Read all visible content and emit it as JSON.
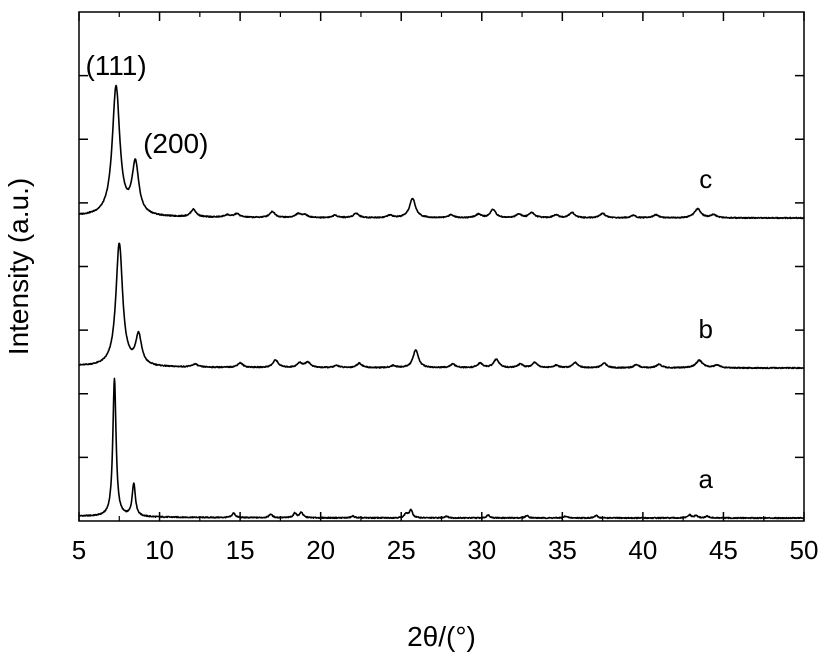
{
  "chart_data": {
    "type": "line",
    "title": "",
    "xlabel": "2θ/(°)",
    "ylabel": "Intensity (a.u.)",
    "xlim": [
      5,
      50
    ],
    "ylim": [
      0,
      100
    ],
    "x_ticks": [
      "5",
      "10",
      "15",
      "20",
      "25",
      "30",
      "35",
      "40",
      "45",
      "50"
    ],
    "y_ticks_labeled": false,
    "grid": false,
    "peak_annotations": [
      {
        "label": "(111)",
        "x": 7.3
      },
      {
        "label": "(200)",
        "x": 8.4
      }
    ],
    "series": [
      {
        "name": "a",
        "offset": 0,
        "peaks": [
          {
            "x": 7.2,
            "height": 46.0,
            "width": 0.12
          },
          {
            "x": 8.4,
            "height": 11.0,
            "width": 0.12
          },
          {
            "x": 14.6,
            "height": 1.5,
            "width": 0.12
          },
          {
            "x": 16.9,
            "height": 1.2,
            "width": 0.12
          },
          {
            "x": 18.4,
            "height": 1.5,
            "width": 0.12
          },
          {
            "x": 18.8,
            "height": 1.8,
            "width": 0.12
          },
          {
            "x": 22.0,
            "height": 0.6,
            "width": 0.12
          },
          {
            "x": 25.3,
            "height": 1.4,
            "width": 0.12
          },
          {
            "x": 25.6,
            "height": 2.6,
            "width": 0.12
          },
          {
            "x": 27.8,
            "height": 0.6,
            "width": 0.12
          },
          {
            "x": 30.4,
            "height": 1.0,
            "width": 0.12
          },
          {
            "x": 32.8,
            "height": 0.8,
            "width": 0.12
          },
          {
            "x": 35.2,
            "height": 0.6,
            "width": 0.12
          },
          {
            "x": 37.1,
            "height": 0.8,
            "width": 0.12
          },
          {
            "x": 42.9,
            "height": 1.0,
            "width": 0.12
          },
          {
            "x": 43.3,
            "height": 0.8,
            "width": 0.12
          },
          {
            "x": 44.0,
            "height": 0.6,
            "width": 0.12
          }
        ]
      },
      {
        "name": "b",
        "offset": 50,
        "peaks": [
          {
            "x": 7.5,
            "height": 41.0,
            "width": 0.25
          },
          {
            "x": 8.7,
            "height": 10.0,
            "width": 0.22
          },
          {
            "x": 12.2,
            "height": 1.0,
            "width": 0.2
          },
          {
            "x": 15.0,
            "height": 1.5,
            "width": 0.2
          },
          {
            "x": 17.2,
            "height": 2.5,
            "width": 0.2
          },
          {
            "x": 18.7,
            "height": 1.5,
            "width": 0.2
          },
          {
            "x": 19.2,
            "height": 1.8,
            "width": 0.2
          },
          {
            "x": 21.0,
            "height": 0.7,
            "width": 0.2
          },
          {
            "x": 22.4,
            "height": 1.5,
            "width": 0.2
          },
          {
            "x": 24.5,
            "height": 0.7,
            "width": 0.2
          },
          {
            "x": 25.9,
            "height": 6.0,
            "width": 0.2
          },
          {
            "x": 28.2,
            "height": 1.2,
            "width": 0.2
          },
          {
            "x": 29.9,
            "height": 1.5,
            "width": 0.2
          },
          {
            "x": 30.9,
            "height": 2.8,
            "width": 0.2
          },
          {
            "x": 32.4,
            "height": 1.2,
            "width": 0.2
          },
          {
            "x": 33.3,
            "height": 1.8,
            "width": 0.2
          },
          {
            "x": 34.6,
            "height": 0.8,
            "width": 0.2
          },
          {
            "x": 35.8,
            "height": 1.8,
            "width": 0.2
          },
          {
            "x": 37.6,
            "height": 1.5,
            "width": 0.2
          },
          {
            "x": 39.6,
            "height": 1.0,
            "width": 0.2
          },
          {
            "x": 41.0,
            "height": 1.2,
            "width": 0.2
          },
          {
            "x": 43.5,
            "height": 2.5,
            "width": 0.25
          },
          {
            "x": 44.6,
            "height": 1.0,
            "width": 0.2
          }
        ]
      },
      {
        "name": "c",
        "offset": 100,
        "peaks": [
          {
            "x": 7.3,
            "height": 43.0,
            "width": 0.28
          },
          {
            "x": 8.5,
            "height": 17.0,
            "width": 0.25
          },
          {
            "x": 12.1,
            "height": 2.5,
            "width": 0.2
          },
          {
            "x": 14.2,
            "height": 0.8,
            "width": 0.2
          },
          {
            "x": 14.8,
            "height": 1.2,
            "width": 0.2
          },
          {
            "x": 17.0,
            "height": 2.0,
            "width": 0.2
          },
          {
            "x": 18.6,
            "height": 1.2,
            "width": 0.2
          },
          {
            "x": 19.0,
            "height": 1.0,
            "width": 0.2
          },
          {
            "x": 20.9,
            "height": 0.8,
            "width": 0.2
          },
          {
            "x": 22.2,
            "height": 1.5,
            "width": 0.2
          },
          {
            "x": 24.3,
            "height": 0.8,
            "width": 0.2
          },
          {
            "x": 25.7,
            "height": 6.5,
            "width": 0.22
          },
          {
            "x": 28.1,
            "height": 1.0,
            "width": 0.2
          },
          {
            "x": 29.8,
            "height": 1.2,
            "width": 0.2
          },
          {
            "x": 30.7,
            "height": 2.8,
            "width": 0.2
          },
          {
            "x": 32.3,
            "height": 1.2,
            "width": 0.2
          },
          {
            "x": 33.1,
            "height": 1.8,
            "width": 0.2
          },
          {
            "x": 34.6,
            "height": 1.0,
            "width": 0.2
          },
          {
            "x": 35.6,
            "height": 1.8,
            "width": 0.2
          },
          {
            "x": 37.5,
            "height": 1.5,
            "width": 0.2
          },
          {
            "x": 39.4,
            "height": 0.8,
            "width": 0.2
          },
          {
            "x": 40.8,
            "height": 1.0,
            "width": 0.2
          },
          {
            "x": 43.4,
            "height": 3.0,
            "width": 0.25
          },
          {
            "x": 44.4,
            "height": 1.0,
            "width": 0.2
          }
        ]
      }
    ]
  }
}
